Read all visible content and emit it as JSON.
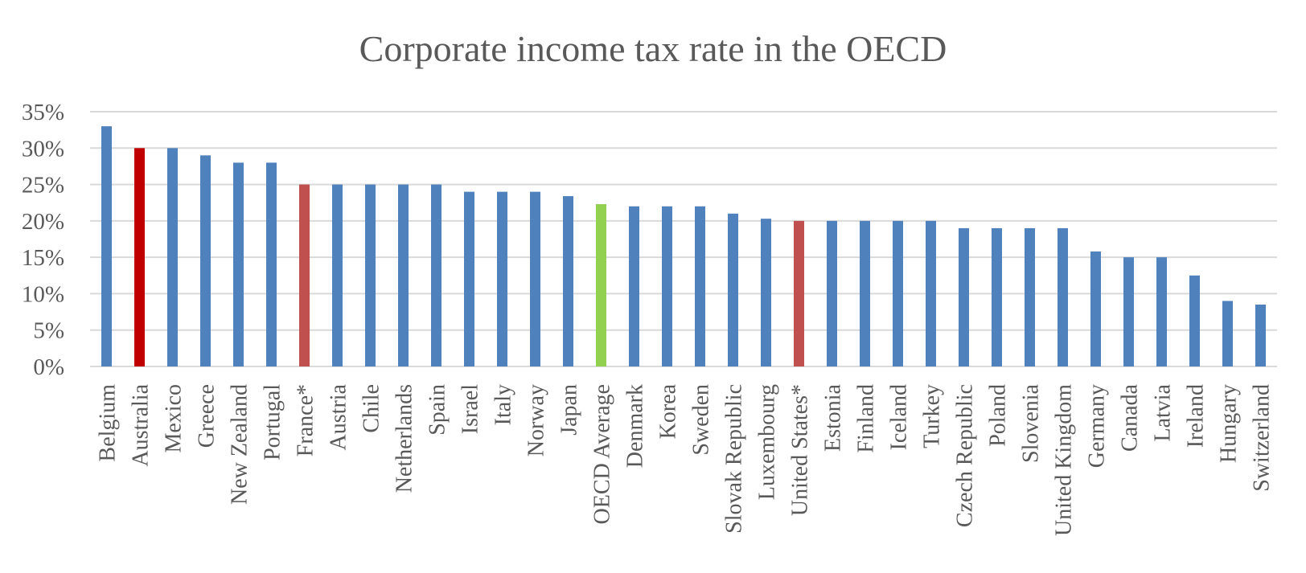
{
  "chart_data": {
    "type": "bar",
    "title": "Corporate income tax rate in the OECD",
    "xlabel": "",
    "ylabel": "",
    "ylim": [
      0,
      35
    ],
    "yticks": [
      0,
      5,
      10,
      15,
      20,
      25,
      30,
      35
    ],
    "ytick_labels": [
      "0%",
      "5%",
      "10%",
      "15%",
      "20%",
      "25%",
      "30%",
      "35%"
    ],
    "grid": true,
    "legend": "none",
    "categories": [
      "Belgium",
      "Australia",
      "Mexico",
      "Greece",
      "New Zealand",
      "Portugal",
      "France*",
      "Austria",
      "Chile",
      "Netherlands",
      "Spain",
      "Israel",
      "Italy",
      "Norway",
      "Japan",
      "OECD Average",
      "Denmark",
      "Korea",
      "Sweden",
      "Slovak Republic",
      "Luxembourg",
      "United States*",
      "Estonia",
      "Finland",
      "Iceland",
      "Turkey",
      "Czech Republic",
      "Poland",
      "Slovenia",
      "United Kingdom",
      "Germany",
      "Canada",
      "Latvia",
      "Ireland",
      "Hungary",
      "Switzerland"
    ],
    "values": [
      33,
      30,
      30,
      29,
      28,
      28,
      25,
      25,
      25,
      25,
      25,
      24,
      24,
      24,
      23.4,
      22.3,
      22,
      22,
      22,
      21,
      20.3,
      20,
      20,
      20,
      20,
      20,
      19,
      19,
      19,
      19,
      15.8,
      15,
      15,
      12.5,
      9,
      8.5
    ],
    "colors": {
      "default": "#4f81bd",
      "Australia": "#c00000",
      "France*": "#c0504d",
      "United States*": "#c0504d",
      "OECD Average": "#92d050",
      "gridline": "#d9d9d9",
      "text": "#595959"
    }
  }
}
